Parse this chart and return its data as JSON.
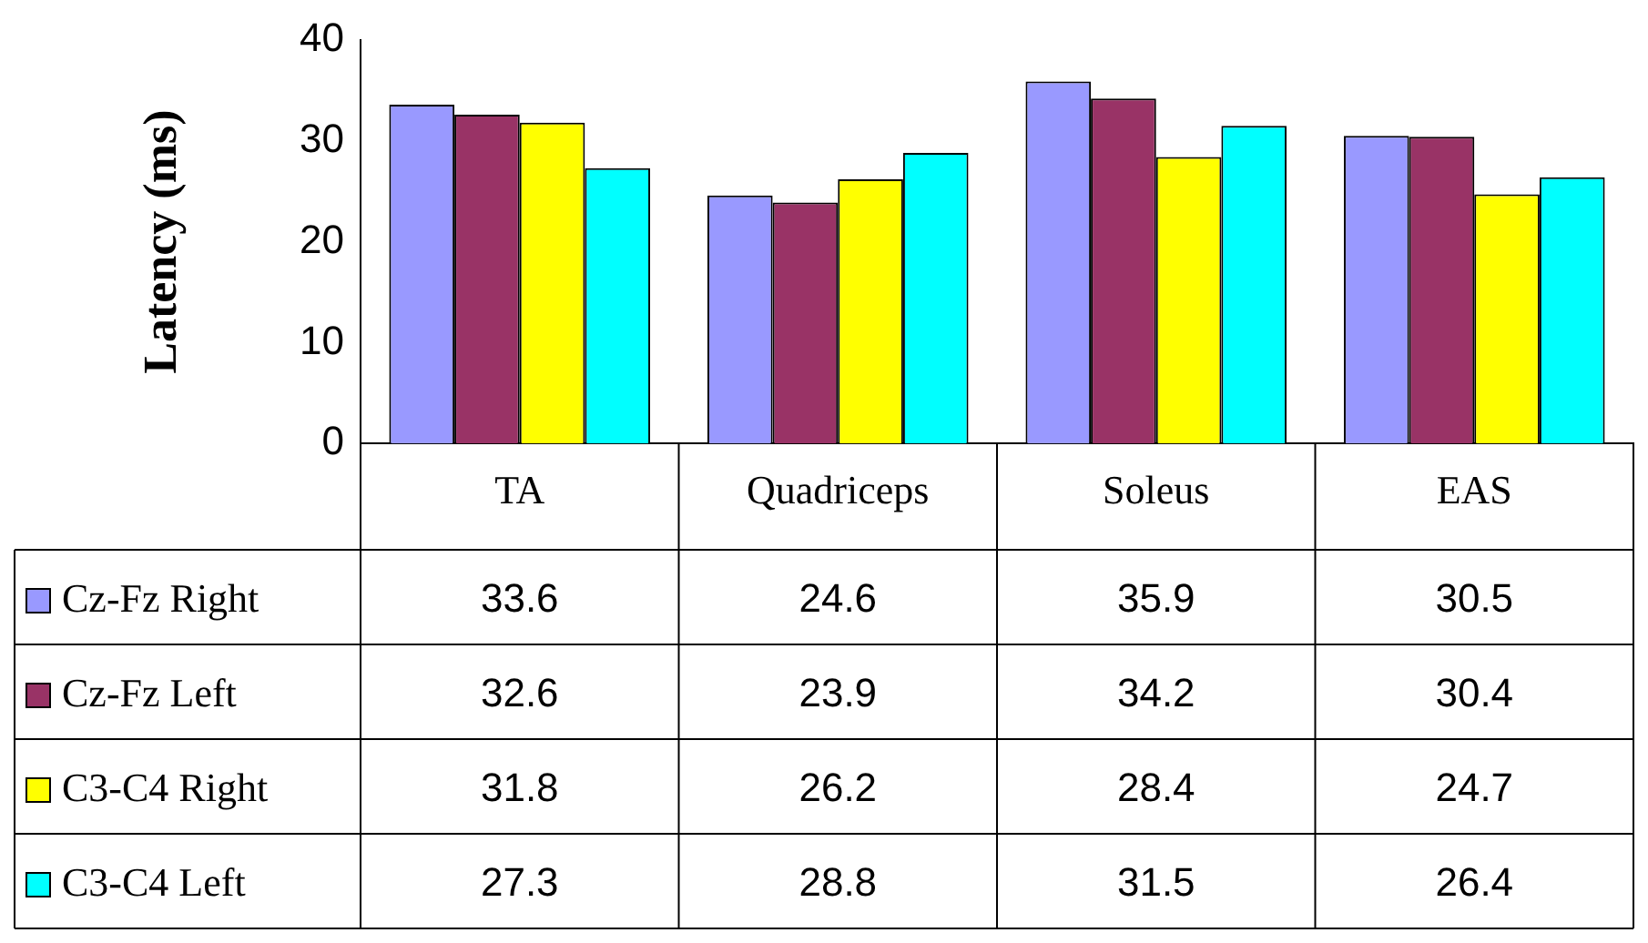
{
  "chart_data": {
    "type": "bar",
    "ylabel": "Latency (ms)",
    "categories": [
      "TA",
      "Quadriceps",
      "Soleus",
      "EAS"
    ],
    "series": [
      {
        "name": "Cz-Fz Right",
        "color": "#9999ff",
        "values": [
          33.6,
          24.6,
          35.9,
          30.5
        ]
      },
      {
        "name": "Cz-Fz Left",
        "color": "#993366",
        "values": [
          32.6,
          23.9,
          34.2,
          30.4
        ]
      },
      {
        "name": "C3-C4 Right",
        "color": "#ffff00",
        "values": [
          31.8,
          26.2,
          28.4,
          24.7
        ]
      },
      {
        "name": "C3-C4 Left",
        "color": "#00ffff",
        "values": [
          27.3,
          28.8,
          31.5,
          26.4
        ]
      }
    ],
    "ylim": [
      0,
      40
    ],
    "yticks": [
      0,
      10,
      20,
      30,
      40
    ],
    "grid": false,
    "legend": "bottom",
    "data_labels": true
  }
}
